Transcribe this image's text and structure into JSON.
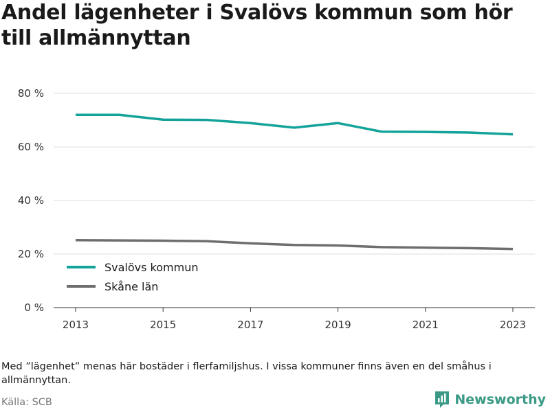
{
  "header": {
    "title": "Andel lägenheter i Svalövs kommun som hör till allmännyttan"
  },
  "chart_data": {
    "type": "line",
    "title": "Andel lägenheter i Svalövs kommun som hör till allmännyttan",
    "xlabel": "",
    "ylabel": "",
    "x": [
      2013,
      2014,
      2015,
      2016,
      2017,
      2018,
      2019,
      2020,
      2021,
      2022,
      2023
    ],
    "x_ticks": [
      2013,
      2015,
      2017,
      2019,
      2021,
      2023
    ],
    "y_ticks": [
      0,
      20,
      40,
      60,
      80
    ],
    "y_tick_labels": [
      "0 %",
      "20 %",
      "40 %",
      "60 %",
      "80 %"
    ],
    "ylim": [
      0,
      80
    ],
    "grid": true,
    "legend_position": "bottom-left",
    "series": [
      {
        "name": "Svalövs kommun",
        "color": "#14a39a",
        "values": [
          72.0,
          72.0,
          70.2,
          70.1,
          68.9,
          67.2,
          68.9,
          65.7,
          65.6,
          65.4,
          64.7
        ]
      },
      {
        "name": "Skåne län",
        "color": "#6e6e6e",
        "values": [
          25.2,
          25.1,
          25.0,
          24.8,
          24.0,
          23.4,
          23.2,
          22.6,
          22.4,
          22.2,
          21.9
        ]
      }
    ]
  },
  "footer": {
    "note": "Med ”lägenhet” menas här bostäder i flerfamiljshus. I vissa kommuner finns även en del småhus i allmännyttan.",
    "source": "Källa: SCB",
    "brand_name": "Newsworthy",
    "brand_color": "#3a9a86"
  }
}
